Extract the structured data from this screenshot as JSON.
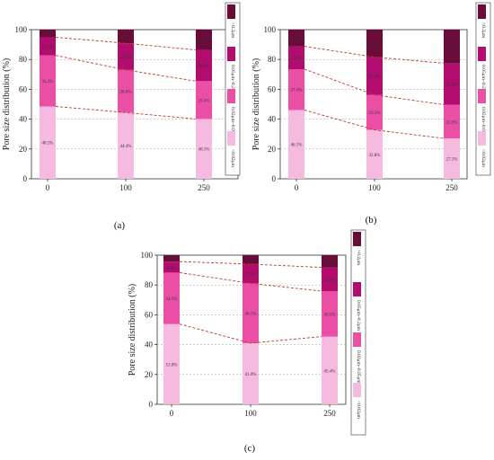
{
  "colors": {
    "lt_002": "#f6b9df",
    "s002_005": "#eb4ea5",
    "s005_02": "#b20d6e",
    "gt_02": "#6a0b3a",
    "trend": "#c0392b",
    "grid": "#9a9a9a"
  },
  "legend_labels": [
    "<0.02μm",
    "0.02μm~0.05μm",
    "0.05μm~0.2μm",
    ">0.2μm"
  ],
  "chart_data": [
    {
      "panel": "(a)",
      "type": "bar",
      "stacked": true,
      "categories": [
        "0",
        "100",
        "250"
      ],
      "ylabel": "Pore size distribution (%)",
      "ylim": [
        0,
        100
      ],
      "yticks": [
        "0",
        "20",
        "40",
        "60",
        "80",
        "100"
      ],
      "grid": true,
      "series": [
        {
          "name": "<0.02μm",
          "values": [
            48.5,
            44.4,
            40.1
          ],
          "labels": [
            "48.5%",
            "44.4%",
            "40.1%"
          ]
        },
        {
          "name": "0.02μm~0.05μm",
          "values": [
            34.2,
            28.6,
            25.4
          ],
          "labels": [
            "34.2%",
            "28.6%",
            "25.4%"
          ]
        },
        {
          "name": "0.05μm~0.2μm",
          "values": [
            12.2,
            17.9,
            20.9
          ],
          "labels": [
            "12.2%",
            "17.9%",
            "20.9%"
          ]
        },
        {
          "name": ">0.2μm",
          "values": [
            5.1,
            9.1,
            13.6
          ],
          "labels": [
            "5.1%",
            "9.1%",
            "13.6%"
          ]
        }
      ]
    },
    {
      "panel": "(b)",
      "type": "bar",
      "stacked": true,
      "categories": [
        "0",
        "100",
        "250"
      ],
      "ylabel": "Pore size distribution (%)",
      "ylim": [
        0,
        100
      ],
      "yticks": [
        "0",
        "20",
        "40",
        "60",
        "80",
        "100"
      ],
      "grid": true,
      "series": [
        {
          "name": "<0.02μm",
          "values": [
            46.1,
            32.8,
            27.1
          ],
          "labels": [
            "46.1%",
            "32.8%",
            "27.1%"
          ]
        },
        {
          "name": "0.02μm~0.05μm",
          "values": [
            27.4,
            23.5,
            22.6
          ],
          "labels": [
            "27.4%",
            "23.5%",
            "22.6%"
          ]
        },
        {
          "name": "0.05μm~0.2μm",
          "values": [
            15.3,
            25.3,
            27.8
          ],
          "labels": [
            "15.3%",
            "25.3%",
            "27.8%"
          ]
        },
        {
          "name": ">0.2μm",
          "values": [
            11.2,
            18.4,
            22.5
          ],
          "labels": [
            "11.2%",
            "18.4%",
            "22.5%"
          ]
        }
      ]
    },
    {
      "panel": "(c)",
      "type": "bar",
      "stacked": true,
      "categories": [
        "0",
        "100",
        "250"
      ],
      "ylabel": "Pore size distribution (%)",
      "ylim": [
        0,
        100
      ],
      "yticks": [
        "0",
        "20",
        "40",
        "60",
        "80",
        "100"
      ],
      "grid": true,
      "series": [
        {
          "name": "<0.02μm",
          "values": [
            53.8,
            41.0,
            45.4
          ],
          "labels": [
            "53.8%",
            "41.0%",
            "45.4%"
          ]
        },
        {
          "name": "0.02μm~0.05μm",
          "values": [
            34.5,
            40.1,
            30.5
          ],
          "labels": [
            "34.5%",
            "40.1%",
            "30.5%"
          ]
        },
        {
          "name": "0.05μm~0.2μm",
          "values": [
            7.4,
            12.9,
            15.9
          ],
          "labels": [
            "7.4%",
            "12.9%",
            "15.9%"
          ]
        },
        {
          "name": ">0.2μm",
          "values": [
            4.3,
            6.1,
            8.2
          ],
          "labels": [
            "4.3%",
            "6.1%",
            "8.2%"
          ]
        }
      ]
    }
  ]
}
